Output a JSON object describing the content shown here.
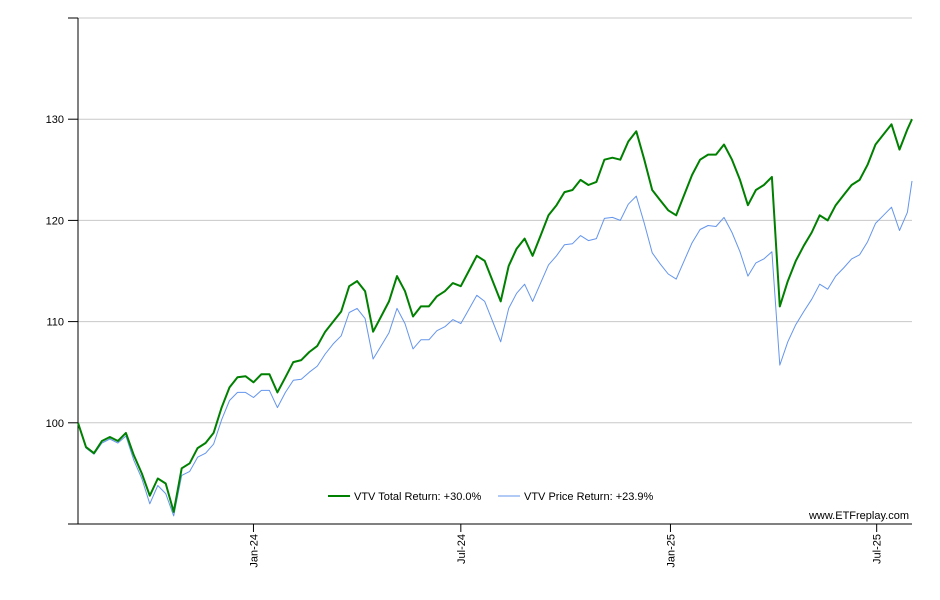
{
  "watermark": "www.ETFreplay.com",
  "chart_data": {
    "type": "line",
    "title": "",
    "xlabel": "",
    "ylabel": "",
    "ylim": [
      90,
      140
    ],
    "yticks": [
      100,
      110,
      120,
      130
    ],
    "x_tick_labels": [
      {
        "date": "2024-01-01",
        "label": "Jan-24"
      },
      {
        "date": "2024-07-01",
        "label": "Jul-24"
      },
      {
        "date": "2025-01-01",
        "label": "Jan-25"
      },
      {
        "date": "2025-07-01",
        "label": "Jul-25"
      }
    ],
    "xlim": [
      "2023-07-31",
      "2025-08-01"
    ],
    "grid": "horizontal",
    "legend_position": "bottom-center",
    "series": [
      {
        "name": "VTV Total Return: +30.0%",
        "color": "#008000",
        "points": [
          [
            "2023-07-31",
            100.0
          ],
          [
            "2023-08-07",
            97.6
          ],
          [
            "2023-08-14",
            97.0
          ],
          [
            "2023-08-21",
            98.2
          ],
          [
            "2023-08-28",
            98.6
          ],
          [
            "2023-09-04",
            98.2
          ],
          [
            "2023-09-11",
            99.0
          ],
          [
            "2023-09-18",
            96.8
          ],
          [
            "2023-09-25",
            95.0
          ],
          [
            "2023-10-02",
            92.8
          ],
          [
            "2023-10-09",
            94.5
          ],
          [
            "2023-10-16",
            94.0
          ],
          [
            "2023-10-23",
            91.2
          ],
          [
            "2023-10-30",
            95.5
          ],
          [
            "2023-11-06",
            96.0
          ],
          [
            "2023-11-13",
            97.5
          ],
          [
            "2023-11-20",
            98.0
          ],
          [
            "2023-11-27",
            99.0
          ],
          [
            "2023-12-04",
            101.5
          ],
          [
            "2023-12-11",
            103.5
          ],
          [
            "2023-12-18",
            104.5
          ],
          [
            "2023-12-25",
            104.6
          ],
          [
            "2024-01-01",
            104.0
          ],
          [
            "2024-01-08",
            104.8
          ],
          [
            "2024-01-15",
            104.8
          ],
          [
            "2024-01-22",
            103.0
          ],
          [
            "2024-01-29",
            104.5
          ],
          [
            "2024-02-05",
            106.0
          ],
          [
            "2024-02-12",
            106.2
          ],
          [
            "2024-02-19",
            107.0
          ],
          [
            "2024-02-26",
            107.6
          ],
          [
            "2024-03-04",
            109.0
          ],
          [
            "2024-03-11",
            110.0
          ],
          [
            "2024-03-18",
            111.0
          ],
          [
            "2024-03-25",
            113.5
          ],
          [
            "2024-04-01",
            114.0
          ],
          [
            "2024-04-08",
            113.0
          ],
          [
            "2024-04-15",
            109.0
          ],
          [
            "2024-04-22",
            110.5
          ],
          [
            "2024-04-29",
            112.0
          ],
          [
            "2024-05-06",
            114.5
          ],
          [
            "2024-05-13",
            113.0
          ],
          [
            "2024-05-20",
            110.5
          ],
          [
            "2024-05-27",
            111.5
          ],
          [
            "2024-06-03",
            111.5
          ],
          [
            "2024-06-10",
            112.5
          ],
          [
            "2024-06-17",
            113.0
          ],
          [
            "2024-06-24",
            113.8
          ],
          [
            "2024-07-01",
            113.5
          ],
          [
            "2024-07-08",
            115.0
          ],
          [
            "2024-07-15",
            116.5
          ],
          [
            "2024-07-22",
            116.0
          ],
          [
            "2024-07-29",
            114.0
          ],
          [
            "2024-08-05",
            112.0
          ],
          [
            "2024-08-12",
            115.5
          ],
          [
            "2024-08-19",
            117.2
          ],
          [
            "2024-08-26",
            118.2
          ],
          [
            "2024-09-02",
            116.5
          ],
          [
            "2024-09-09",
            118.5
          ],
          [
            "2024-09-16",
            120.5
          ],
          [
            "2024-09-23",
            121.5
          ],
          [
            "2024-09-30",
            122.8
          ],
          [
            "2024-10-07",
            123.0
          ],
          [
            "2024-10-14",
            124.0
          ],
          [
            "2024-10-21",
            123.5
          ],
          [
            "2024-10-28",
            123.8
          ],
          [
            "2024-11-04",
            126.0
          ],
          [
            "2024-11-11",
            126.2
          ],
          [
            "2024-11-18",
            126.0
          ],
          [
            "2024-11-25",
            127.8
          ],
          [
            "2024-12-02",
            128.8
          ],
          [
            "2024-12-09",
            126.0
          ],
          [
            "2024-12-16",
            123.0
          ],
          [
            "2024-12-23",
            122.0
          ],
          [
            "2024-12-30",
            121.0
          ],
          [
            "2025-01-06",
            120.5
          ],
          [
            "2025-01-13",
            122.5
          ],
          [
            "2025-01-20",
            124.5
          ],
          [
            "2025-01-27",
            126.0
          ],
          [
            "2025-02-03",
            126.5
          ],
          [
            "2025-02-10",
            126.5
          ],
          [
            "2025-02-17",
            127.5
          ],
          [
            "2025-02-24",
            126.0
          ],
          [
            "2025-03-03",
            124.0
          ],
          [
            "2025-03-10",
            121.5
          ],
          [
            "2025-03-17",
            123.0
          ],
          [
            "2025-03-24",
            123.5
          ],
          [
            "2025-03-31",
            124.3
          ],
          [
            "2025-04-07",
            111.5
          ],
          [
            "2025-04-14",
            114.0
          ],
          [
            "2025-04-21",
            116.0
          ],
          [
            "2025-04-28",
            117.5
          ],
          [
            "2025-05-05",
            118.8
          ],
          [
            "2025-05-12",
            120.5
          ],
          [
            "2025-05-19",
            120.0
          ],
          [
            "2025-05-26",
            121.5
          ],
          [
            "2025-06-02",
            122.5
          ],
          [
            "2025-06-09",
            123.5
          ],
          [
            "2025-06-16",
            124.0
          ],
          [
            "2025-06-23",
            125.5
          ],
          [
            "2025-06-30",
            127.5
          ],
          [
            "2025-07-07",
            128.5
          ],
          [
            "2025-07-14",
            129.5
          ],
          [
            "2025-07-21",
            127.0
          ],
          [
            "2025-07-28",
            129.0
          ],
          [
            "2025-08-01",
            130.0
          ]
        ]
      },
      {
        "name": "VTV Price Return: +23.9%",
        "color": "#6495ED",
        "points": [
          [
            "2023-07-31",
            100.0
          ],
          [
            "2023-08-07",
            97.5
          ],
          [
            "2023-08-14",
            96.9
          ],
          [
            "2023-08-21",
            98.0
          ],
          [
            "2023-08-28",
            98.4
          ],
          [
            "2023-09-04",
            98.0
          ],
          [
            "2023-09-11",
            98.7
          ],
          [
            "2023-09-18",
            96.3
          ],
          [
            "2023-09-25",
            94.5
          ],
          [
            "2023-10-02",
            92.0
          ],
          [
            "2023-10-09",
            93.8
          ],
          [
            "2023-10-16",
            93.0
          ],
          [
            "2023-10-23",
            90.8
          ],
          [
            "2023-10-30",
            94.8
          ],
          [
            "2023-11-06",
            95.2
          ],
          [
            "2023-11-13",
            96.6
          ],
          [
            "2023-11-20",
            97.0
          ],
          [
            "2023-11-27",
            97.9
          ],
          [
            "2023-12-04",
            100.3
          ],
          [
            "2023-12-11",
            102.2
          ],
          [
            "2023-12-18",
            103.0
          ],
          [
            "2023-12-25",
            103.0
          ],
          [
            "2024-01-01",
            102.5
          ],
          [
            "2024-01-08",
            103.2
          ],
          [
            "2024-01-15",
            103.2
          ],
          [
            "2024-01-22",
            101.5
          ],
          [
            "2024-01-29",
            103.0
          ],
          [
            "2024-02-05",
            104.2
          ],
          [
            "2024-02-12",
            104.3
          ],
          [
            "2024-02-19",
            105.0
          ],
          [
            "2024-02-26",
            105.6
          ],
          [
            "2024-03-04",
            106.8
          ],
          [
            "2024-03-11",
            107.8
          ],
          [
            "2024-03-18",
            108.6
          ],
          [
            "2024-03-25",
            110.9
          ],
          [
            "2024-04-01",
            111.3
          ],
          [
            "2024-04-08",
            110.3
          ],
          [
            "2024-04-15",
            106.3
          ],
          [
            "2024-04-22",
            107.6
          ],
          [
            "2024-04-29",
            108.9
          ],
          [
            "2024-05-06",
            111.3
          ],
          [
            "2024-05-13",
            109.8
          ],
          [
            "2024-05-20",
            107.3
          ],
          [
            "2024-05-27",
            108.2
          ],
          [
            "2024-06-03",
            108.2
          ],
          [
            "2024-06-10",
            109.1
          ],
          [
            "2024-06-17",
            109.5
          ],
          [
            "2024-06-24",
            110.2
          ],
          [
            "2024-07-01",
            109.8
          ],
          [
            "2024-07-08",
            111.2
          ],
          [
            "2024-07-15",
            112.6
          ],
          [
            "2024-07-22",
            112.0
          ],
          [
            "2024-07-29",
            110.0
          ],
          [
            "2024-08-05",
            108.0
          ],
          [
            "2024-08-12",
            111.3
          ],
          [
            "2024-08-19",
            112.8
          ],
          [
            "2024-08-26",
            113.7
          ],
          [
            "2024-09-02",
            112.0
          ],
          [
            "2024-09-09",
            113.8
          ],
          [
            "2024-09-16",
            115.6
          ],
          [
            "2024-09-23",
            116.5
          ],
          [
            "2024-09-30",
            117.6
          ],
          [
            "2024-10-07",
            117.7
          ],
          [
            "2024-10-14",
            118.5
          ],
          [
            "2024-10-21",
            118.0
          ],
          [
            "2024-10-28",
            118.2
          ],
          [
            "2024-11-04",
            120.2
          ],
          [
            "2024-11-11",
            120.3
          ],
          [
            "2024-11-18",
            120.0
          ],
          [
            "2024-11-25",
            121.6
          ],
          [
            "2024-12-02",
            122.4
          ],
          [
            "2024-12-09",
            119.7
          ],
          [
            "2024-12-16",
            116.8
          ],
          [
            "2024-12-23",
            115.7
          ],
          [
            "2024-12-30",
            114.7
          ],
          [
            "2025-01-06",
            114.2
          ],
          [
            "2025-01-13",
            116.0
          ],
          [
            "2025-01-20",
            117.8
          ],
          [
            "2025-01-27",
            119.1
          ],
          [
            "2025-02-03",
            119.5
          ],
          [
            "2025-02-10",
            119.4
          ],
          [
            "2025-02-17",
            120.3
          ],
          [
            "2025-02-24",
            118.8
          ],
          [
            "2025-03-03",
            116.9
          ],
          [
            "2025-03-10",
            114.5
          ],
          [
            "2025-03-17",
            115.8
          ],
          [
            "2025-03-24",
            116.2
          ],
          [
            "2025-03-31",
            116.9
          ],
          [
            "2025-04-07",
            105.7
          ],
          [
            "2025-04-14",
            108.0
          ],
          [
            "2025-04-21",
            109.7
          ],
          [
            "2025-04-28",
            111.0
          ],
          [
            "2025-05-05",
            112.2
          ],
          [
            "2025-05-12",
            113.7
          ],
          [
            "2025-05-19",
            113.2
          ],
          [
            "2025-05-26",
            114.5
          ],
          [
            "2025-06-02",
            115.3
          ],
          [
            "2025-06-09",
            116.2
          ],
          [
            "2025-06-16",
            116.6
          ],
          [
            "2025-06-23",
            117.9
          ],
          [
            "2025-06-30",
            119.7
          ],
          [
            "2025-07-07",
            120.5
          ],
          [
            "2025-07-14",
            121.3
          ],
          [
            "2025-07-21",
            119.0
          ],
          [
            "2025-07-28",
            120.8
          ],
          [
            "2025-08-01",
            123.9
          ]
        ]
      }
    ]
  }
}
